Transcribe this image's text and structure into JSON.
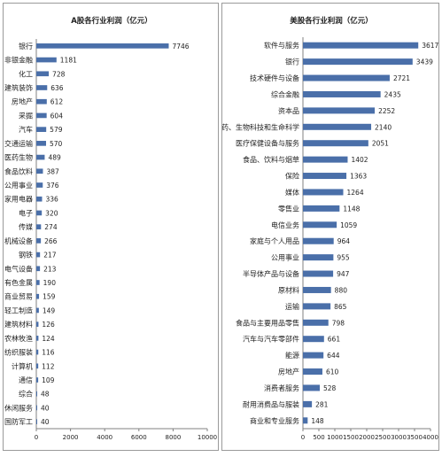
{
  "colors": {
    "bar": "#4a6fa9",
    "axis": "#808080",
    "frame": "#9a9a9a"
  },
  "chart_data": [
    {
      "type": "bar",
      "orientation": "horizontal",
      "title": "A股各行业利润（亿元）",
      "categories": [
        "银行",
        "非银金融",
        "化工",
        "建筑装饰",
        "房地产",
        "采掘",
        "汽车",
        "交通运输",
        "医药生物",
        "食品饮料",
        "公用事业",
        "家用电器",
        "电子",
        "传媒",
        "机械设备",
        "钢铁",
        "电气设备",
        "有色金属",
        "商业贸易",
        "轻工制造",
        "建筑材料",
        "农林牧渔",
        "纺织服装",
        "计算机",
        "通信",
        "综合",
        "休闲服务",
        "国防军工"
      ],
      "values": [
        7746,
        1181,
        728,
        636,
        612,
        604,
        579,
        570,
        489,
        387,
        376,
        336,
        320,
        274,
        266,
        217,
        213,
        190,
        159,
        149,
        126,
        124,
        116,
        112,
        109,
        48,
        40,
        40
      ],
      "xlim": [
        0,
        10000
      ],
      "xticks": [
        "0",
        "2000",
        "4000",
        "6000",
        "8000",
        "10000"
      ],
      "grid": false,
      "legend": "none"
    },
    {
      "type": "bar",
      "orientation": "horizontal",
      "title": "美股各行业利润（亿元）",
      "categories": [
        "软件与服务",
        "银行",
        "技术硬件与设备",
        "综合金融",
        "资本品",
        "制药、生物科技和生命科学",
        "医疗保健设备与服务",
        "食品、饮料与烟草",
        "保险",
        "媒体",
        "零售业",
        "电信业务",
        "家庭与个人用品",
        "公用事业",
        "半导体产品与设备",
        "原材料",
        "运输",
        "食品与主要用品零售",
        "汽车与汽车零部件",
        "能源",
        "房地产",
        "消费者服务",
        "耐用消费品与服装",
        "商业和专业服务"
      ],
      "values": [
        3617,
        3439,
        2721,
        2435,
        2252,
        2140,
        2051,
        1402,
        1363,
        1264,
        1148,
        1059,
        964,
        955,
        947,
        880,
        865,
        798,
        661,
        644,
        610,
        528,
        281,
        148
      ],
      "xlim": [
        0,
        4000
      ],
      "xticks": [
        "0",
        "500",
        "1000",
        "1500",
        "2000",
        "2500",
        "3000",
        "3500",
        "4000"
      ],
      "grid": false,
      "legend": "none"
    }
  ]
}
